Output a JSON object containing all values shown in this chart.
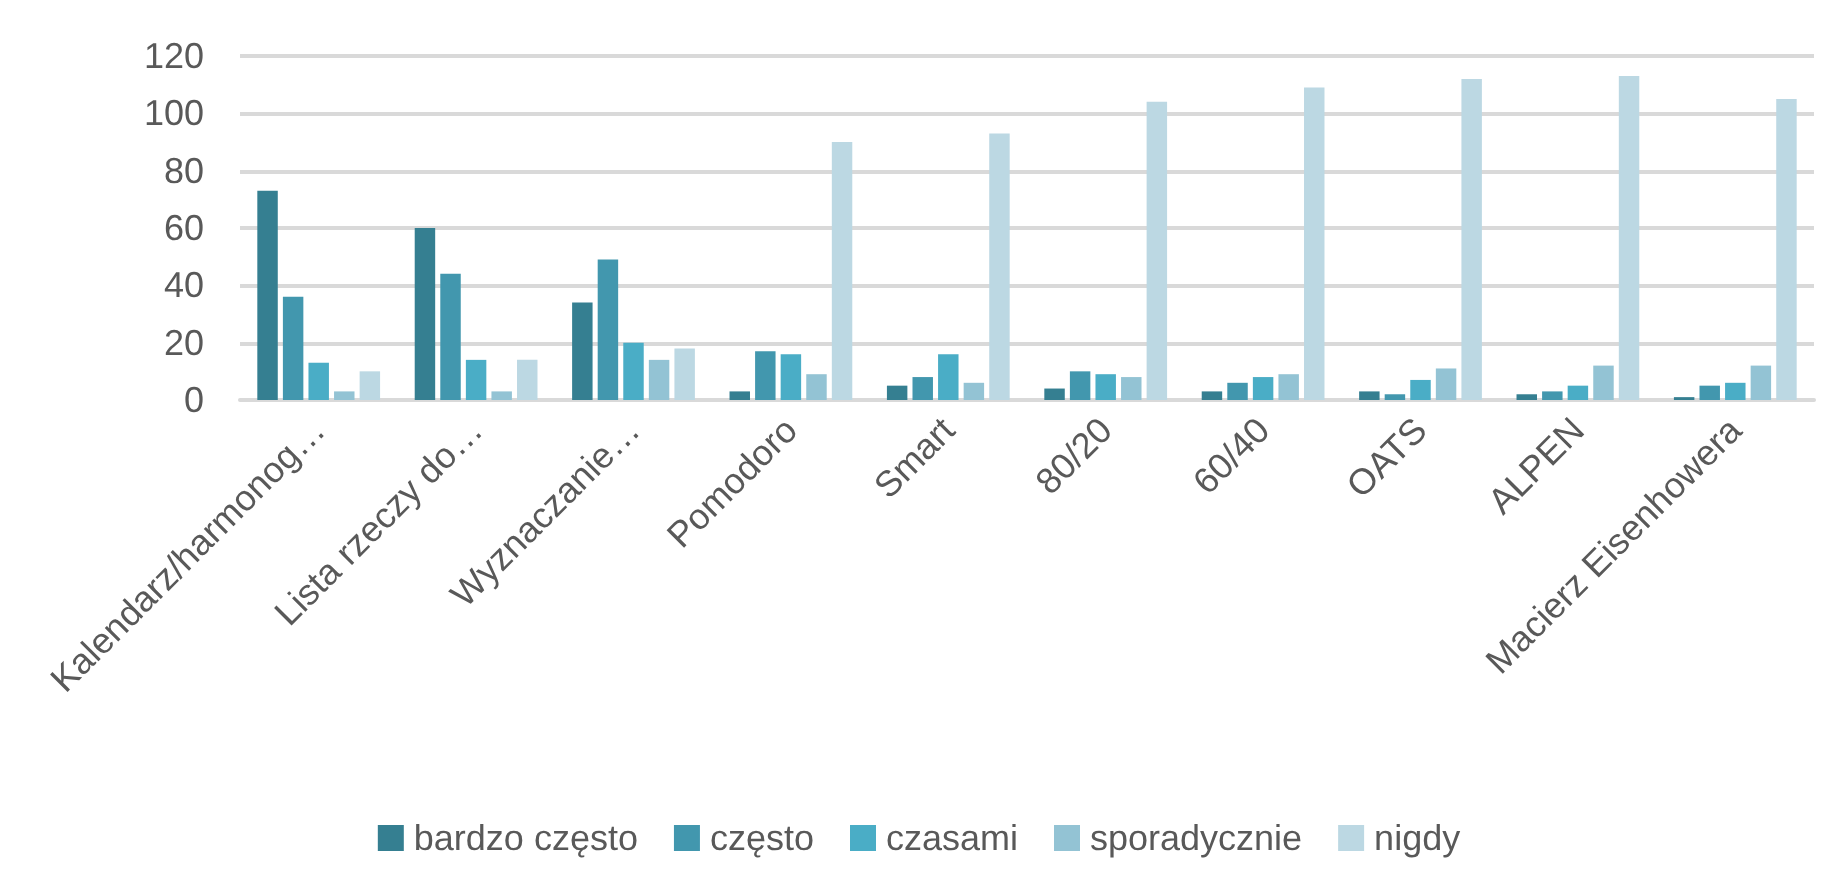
{
  "chart_data": {
    "type": "bar",
    "categories": [
      "Kalendarz/harmonog…",
      "Lista rzeczy do…",
      "Wyznaczanie…",
      "Pomodoro",
      "Smart",
      "80/20",
      "60/40",
      "OATS",
      "ALPEN",
      "Macierz Eisenhowera"
    ],
    "series": [
      {
        "name": "bardzo często",
        "color": "#357f91",
        "values": [
          73,
          60,
          34,
          3,
          5,
          4,
          3,
          3,
          2,
          1
        ]
      },
      {
        "name": "często",
        "color": "#4297ae",
        "values": [
          36,
          44,
          49,
          17,
          8,
          10,
          6,
          2,
          3,
          5
        ]
      },
      {
        "name": "czasami",
        "color": "#4aadc6",
        "values": [
          13,
          14,
          20,
          16,
          16,
          9,
          8,
          7,
          5,
          6
        ]
      },
      {
        "name": "sporadycznie",
        "color": "#93c3d4",
        "values": [
          3,
          3,
          14,
          9,
          6,
          8,
          9,
          11,
          12,
          12
        ]
      },
      {
        "name": "nigdy",
        "color": "#bcd8e3",
        "values": [
          10,
          14,
          18,
          90,
          93,
          104,
          109,
          112,
          113,
          105
        ]
      }
    ],
    "ylim": [
      0,
      120
    ],
    "yticks": [
      0,
      20,
      40,
      60,
      80,
      100,
      120
    ],
    "grid": "y",
    "legend": "bottom"
  }
}
